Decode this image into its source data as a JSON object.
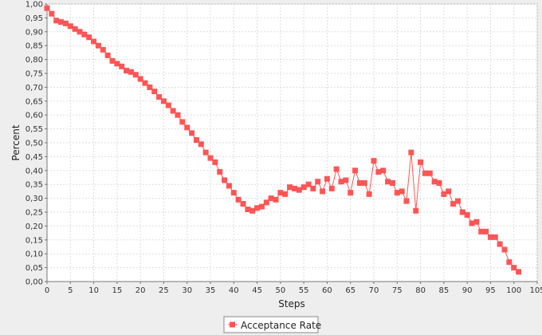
{
  "chart_data": {
    "type": "line",
    "title": "",
    "xlabel": "Steps",
    "ylabel": "Percent",
    "xlim": [
      0,
      105
    ],
    "ylim": [
      0,
      1.0
    ],
    "x_ticks": [
      "0",
      "5",
      "10",
      "15",
      "20",
      "25",
      "30",
      "35",
      "40",
      "45",
      "50",
      "55",
      "60",
      "65",
      "70",
      "75",
      "80",
      "85",
      "90",
      "95",
      "100",
      "105"
    ],
    "y_ticks": [
      "0,00",
      "0,05",
      "0,10",
      "0,15",
      "0,20",
      "0,25",
      "0,30",
      "0,35",
      "0,40",
      "0,45",
      "0,50",
      "0,55",
      "0,60",
      "0,65",
      "0,70",
      "0,75",
      "0,80",
      "0,85",
      "0,90",
      "0,95",
      "1,00"
    ],
    "grid": true,
    "legend_position": "bottom-center",
    "series": [
      {
        "name": "Acceptance Rate",
        "color": "#ff5555",
        "marker": "square",
        "x": [
          0,
          1,
          2,
          3,
          4,
          5,
          6,
          7,
          8,
          9,
          10,
          11,
          12,
          13,
          14,
          15,
          16,
          17,
          18,
          19,
          20,
          21,
          22,
          23,
          24,
          25,
          26,
          27,
          28,
          29,
          30,
          31,
          32,
          33,
          34,
          35,
          36,
          37,
          38,
          39,
          40,
          41,
          42,
          43,
          44,
          45,
          46,
          47,
          48,
          49,
          50,
          51,
          52,
          53,
          54,
          55,
          56,
          57,
          58,
          59,
          60,
          61,
          62,
          63,
          64,
          65,
          66,
          67,
          68,
          69,
          70,
          71,
          72,
          73,
          74,
          75,
          76,
          77,
          78,
          79,
          80,
          81,
          82,
          83,
          84,
          85,
          86,
          87,
          88,
          89,
          90,
          91,
          92,
          93,
          94,
          95,
          96,
          97,
          98,
          99,
          100,
          101
        ],
        "y": [
          0.985,
          0.965,
          0.94,
          0.935,
          0.93,
          0.92,
          0.91,
          0.9,
          0.89,
          0.88,
          0.865,
          0.85,
          0.835,
          0.815,
          0.795,
          0.785,
          0.775,
          0.76,
          0.755,
          0.745,
          0.73,
          0.715,
          0.7,
          0.685,
          0.665,
          0.65,
          0.635,
          0.615,
          0.6,
          0.575,
          0.555,
          0.535,
          0.51,
          0.495,
          0.465,
          0.445,
          0.43,
          0.395,
          0.365,
          0.345,
          0.32,
          0.295,
          0.28,
          0.26,
          0.255,
          0.265,
          0.27,
          0.285,
          0.3,
          0.295,
          0.32,
          0.315,
          0.34,
          0.335,
          0.33,
          0.34,
          0.35,
          0.335,
          0.36,
          0.325,
          0.37,
          0.335,
          0.405,
          0.36,
          0.365,
          0.32,
          0.4,
          0.355,
          0.355,
          0.315,
          0.435,
          0.395,
          0.4,
          0.36,
          0.355,
          0.32,
          0.325,
          0.29,
          0.465,
          0.255,
          0.43,
          0.39,
          0.39,
          0.36,
          0.355,
          0.315,
          0.325,
          0.28,
          0.29,
          0.25,
          0.24,
          0.21,
          0.215,
          0.18,
          0.18,
          0.16,
          0.16,
          0.135,
          0.115,
          0.07,
          0.05,
          0.035
        ]
      }
    ]
  }
}
